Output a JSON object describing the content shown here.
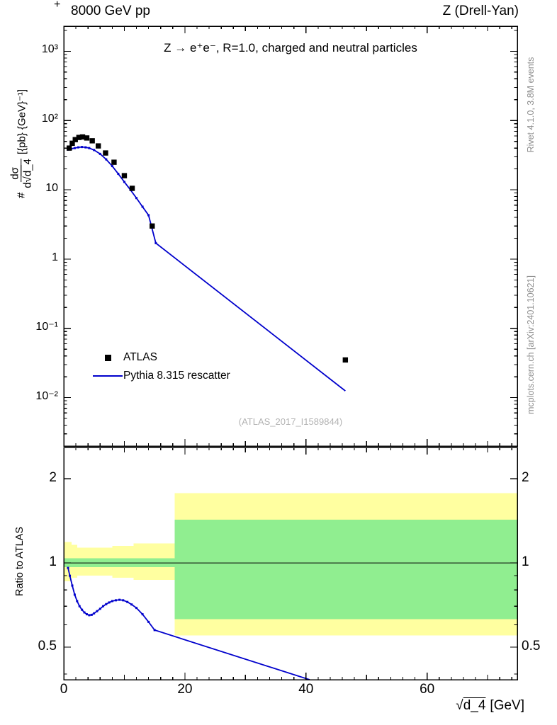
{
  "header": {
    "left": "8000 GeV pp",
    "right": "Z (Drell-Yan)"
  },
  "decor": {
    "corner": "+"
  },
  "title": "Z → e⁺e⁻, R=1.0, charged and neutral particles",
  "watermark": "(ATLAS_2017_I1589844)",
  "side_notes": {
    "top": "Rivet 4.1.0,  3.8M events",
    "bottom": "mcplots.cern.ch [arXiv:2401.10621]"
  },
  "ylabel": {
    "prefix": "#",
    "numerator": "dσ",
    "den_prefix": "d√",
    "den_radicand": "d_4",
    "suffix": "[{pb} {GeV}⁻¹]"
  },
  "axes": {
    "x": {
      "min": 0,
      "max": 74.9,
      "sqrt": "√",
      "radicand": "d_4",
      "unit": "[GeV]",
      "major_ticks": [
        0,
        20,
        40,
        60
      ],
      "minor_step": 2
    },
    "y_top": {
      "scale": "log",
      "min": 0.002,
      "max": 2300,
      "ticks": [
        {
          "v": 1000,
          "label": "10³"
        },
        {
          "v": 100,
          "label": "10²"
        },
        {
          "v": 10,
          "label": "10"
        },
        {
          "v": 1,
          "label": "1"
        },
        {
          "v": 0.1,
          "label": "10⁻¹"
        },
        {
          "v": 0.01,
          "label": "10⁻²"
        }
      ]
    },
    "y_ratio": {
      "scale": "log",
      "min": 0.382,
      "max": 2.59,
      "label": "Ratio to ATLAS",
      "ticks": [
        {
          "v": 2,
          "label": "2"
        },
        {
          "v": 1,
          "label": "1"
        },
        {
          "v": 0.5,
          "label": "0.5"
        }
      ]
    }
  },
  "legend": [
    {
      "label": "ATLAS",
      "type": "marker",
      "color": "#000000"
    },
    {
      "label": "Pythia 8.315 rescatter",
      "type": "line",
      "color": "#0000cc"
    }
  ],
  "colors": {
    "line_blue": "#0000cc",
    "band_yellow": "#ffffa0",
    "band_green": "#90ee90",
    "frame": "#000000",
    "note_gray": "#8f8f8f",
    "watermark_gray": "#b3b3b3"
  },
  "chart_data": {
    "type": "line",
    "title": "Z → e⁺e⁻, R=1.0, charged and neutral particles",
    "xlabel": "√d_4 [GeV]",
    "ylabel": "# dσ/d√d_4 [{pb} {GeV}⁻¹]",
    "xlim": [
      0,
      74.9
    ],
    "ylim_main": [
      0.002,
      2300
    ],
    "ylim_ratio": [
      0.382,
      2.59
    ],
    "grid": false,
    "legend_position": "middle-left",
    "series": [
      {
        "name": "ATLAS",
        "type": "scatter",
        "marker": "square",
        "color": "#000000",
        "x": [
          0.9,
          1.4,
          1.9,
          2.5,
          3.1,
          3.8,
          4.7,
          5.7,
          6.9,
          8.3,
          10.0,
          11.3,
          14.6,
          46.5
        ],
        "y": [
          40,
          47,
          53,
          57,
          58,
          56,
          51,
          43,
          34,
          25,
          16,
          10.5,
          3.0,
          0.035
        ]
      },
      {
        "name": "Pythia 8.315 rescatter",
        "type": "line",
        "color": "#0000cc",
        "x": [
          0.7,
          1.2,
          1.8,
          2.4,
          3.0,
          3.6,
          4.2,
          5.0,
          6.0,
          7.0,
          8.0,
          9.0,
          10.0,
          11.0,
          12.0,
          13.0,
          14.0,
          15.2,
          46.5
        ],
        "y": [
          38,
          39,
          40,
          41,
          41.5,
          41,
          40,
          37.5,
          33,
          27.5,
          22,
          17,
          13,
          10,
          7.6,
          5.7,
          4.3,
          1.7,
          0.0125
        ]
      }
    ],
    "ratio": {
      "name": "Pythia 8.315 rescatter / ATLAS",
      "color": "#0000cc",
      "reference": 1,
      "x": [
        0.7,
        1.0,
        1.4,
        1.8,
        2.2,
        2.6,
        3.0,
        3.4,
        3.8,
        4.2,
        4.6,
        5.0,
        5.5,
        6.0,
        6.5,
        7.0,
        7.5,
        8.0,
        8.6,
        9.2,
        9.8,
        10.5,
        11.2,
        12.0,
        13.0,
        14.0,
        15.0,
        40.6
      ],
      "y": [
        0.96,
        0.9,
        0.83,
        0.77,
        0.73,
        0.7,
        0.68,
        0.665,
        0.655,
        0.65,
        0.652,
        0.66,
        0.672,
        0.685,
        0.7,
        0.712,
        0.722,
        0.73,
        0.735,
        0.738,
        0.735,
        0.725,
        0.71,
        0.69,
        0.655,
        0.615,
        0.575,
        0.375
      ],
      "bands": {
        "yellow": {
          "color": "#ffffa0",
          "regions": [
            {
              "x0": 0,
              "x1": 1.3,
              "lo": 0.86,
              "hi": 1.19
            },
            {
              "x0": 1.3,
              "x1": 2.2,
              "lo": 0.885,
              "hi": 1.16
            },
            {
              "x0": 2.2,
              "x1": 8.0,
              "lo": 0.9,
              "hi": 1.135
            },
            {
              "x0": 8.0,
              "x1": 11.5,
              "lo": 0.885,
              "hi": 1.15
            },
            {
              "x0": 11.5,
              "x1": 18.3,
              "lo": 0.87,
              "hi": 1.175
            },
            {
              "x0": 18.3,
              "x1": 74.9,
              "lo": 0.55,
              "hi": 1.78
            }
          ]
        },
        "green": {
          "color": "#90ee90",
          "regions": [
            {
              "x0": 0,
              "x1": 18.3,
              "lo": 0.965,
              "hi": 1.04
            },
            {
              "x0": 18.3,
              "x1": 74.9,
              "lo": 0.63,
              "hi": 1.43
            }
          ]
        }
      }
    }
  }
}
